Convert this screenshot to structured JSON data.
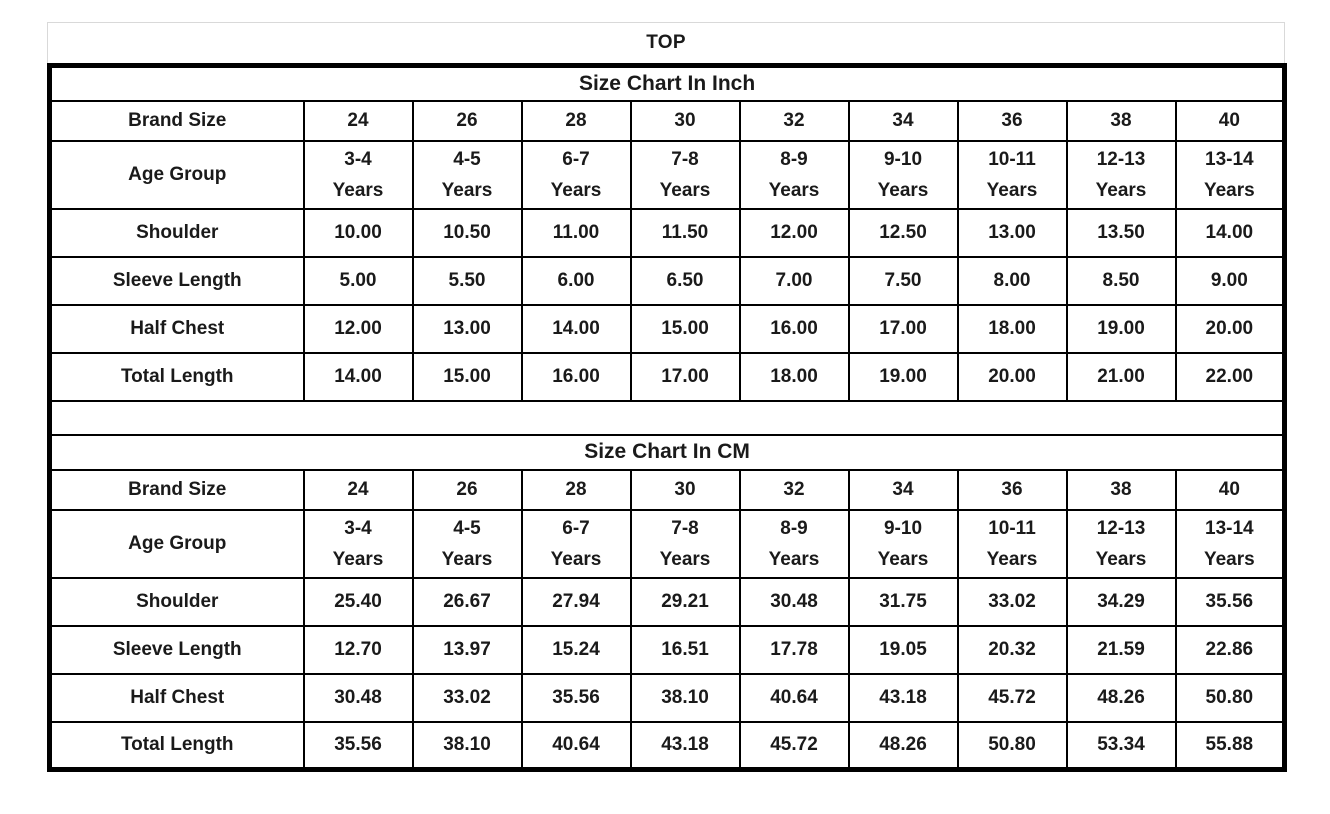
{
  "sheet_title": "TOP",
  "colors": {
    "table_border": "#000000",
    "frame_border": "#d9d9d9",
    "text": "#1a1a1a",
    "background": "#ffffff"
  },
  "tables": [
    {
      "title": "Size Chart In Inch",
      "brand_size_label": "Brand Size",
      "brand_sizes": [
        "24",
        "26",
        "28",
        "30",
        "32",
        "34",
        "36",
        "38",
        "40"
      ],
      "age_group_label": "Age Group",
      "age_groups": [
        {
          "line1": "3-4",
          "line2": "Years"
        },
        {
          "line1": "4-5",
          "line2": "Years"
        },
        {
          "line1": "6-7",
          "line2": "Years"
        },
        {
          "line1": "7-8",
          "line2": "Years"
        },
        {
          "line1": "8-9",
          "line2": "Years"
        },
        {
          "line1": "9-10",
          "line2": "Years"
        },
        {
          "line1": "10-11",
          "line2": "Years"
        },
        {
          "line1": "12-13",
          "line2": "Years"
        },
        {
          "line1": "13-14",
          "line2": "Years"
        }
      ],
      "rows": [
        {
          "label": "Shoulder",
          "values": [
            "10.00",
            "10.50",
            "11.00",
            "11.50",
            "12.00",
            "12.50",
            "13.00",
            "13.50",
            "14.00"
          ]
        },
        {
          "label": "Sleeve Length",
          "values": [
            "5.00",
            "5.50",
            "6.00",
            "6.50",
            "7.00",
            "7.50",
            "8.00",
            "8.50",
            "9.00"
          ]
        },
        {
          "label": "Half Chest",
          "values": [
            "12.00",
            "13.00",
            "14.00",
            "15.00",
            "16.00",
            "17.00",
            "18.00",
            "19.00",
            "20.00"
          ]
        },
        {
          "label": "Total Length",
          "values": [
            "14.00",
            "15.00",
            "16.00",
            "17.00",
            "18.00",
            "19.00",
            "20.00",
            "21.00",
            "22.00"
          ]
        }
      ]
    },
    {
      "title": "Size Chart In CM",
      "brand_size_label": "Brand Size",
      "brand_sizes": [
        "24",
        "26",
        "28",
        "30",
        "32",
        "34",
        "36",
        "38",
        "40"
      ],
      "age_group_label": "Age Group",
      "age_groups": [
        {
          "line1": "3-4",
          "line2": "Years"
        },
        {
          "line1": "4-5",
          "line2": "Years"
        },
        {
          "line1": "6-7",
          "line2": "Years"
        },
        {
          "line1": "7-8",
          "line2": "Years"
        },
        {
          "line1": "8-9",
          "line2": "Years"
        },
        {
          "line1": "9-10",
          "line2": "Years"
        },
        {
          "line1": "10-11",
          "line2": "Years"
        },
        {
          "line1": "12-13",
          "line2": "Years"
        },
        {
          "line1": "13-14",
          "line2": "Years"
        }
      ],
      "rows": [
        {
          "label": "Shoulder",
          "values": [
            "25.40",
            "26.67",
            "27.94",
            "29.21",
            "30.48",
            "31.75",
            "33.02",
            "34.29",
            "35.56"
          ]
        },
        {
          "label": "Sleeve Length",
          "values": [
            "12.70",
            "13.97",
            "15.24",
            "16.51",
            "17.78",
            "19.05",
            "20.32",
            "21.59",
            "22.86"
          ]
        },
        {
          "label": "Half Chest",
          "values": [
            "30.48",
            "33.02",
            "35.56",
            "38.10",
            "40.64",
            "43.18",
            "45.72",
            "48.26",
            "50.80"
          ]
        },
        {
          "label": "Total Length",
          "values": [
            "35.56",
            "38.10",
            "40.64",
            "43.18",
            "45.72",
            "48.26",
            "50.80",
            "53.34",
            "55.88"
          ]
        }
      ]
    }
  ]
}
